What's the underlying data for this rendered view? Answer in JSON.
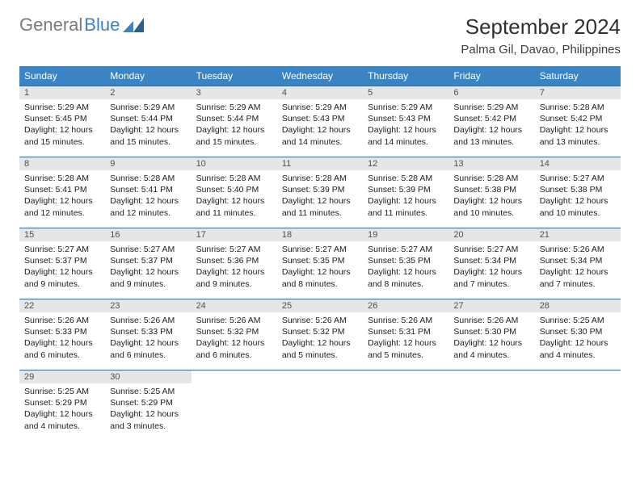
{
  "brand": {
    "part1": "General",
    "part2": "Blue"
  },
  "title": "September 2024",
  "location": "Palma Gil, Davao, Philippines",
  "colors": {
    "header_bg": "#3a84c4",
    "header_text": "#ffffff",
    "daynum_bg": "#e6e6e6",
    "border": "#3a6a94",
    "brand_gray": "#7a7a7a",
    "brand_blue": "#3a84c4"
  },
  "weekdays": [
    "Sunday",
    "Monday",
    "Tuesday",
    "Wednesday",
    "Thursday",
    "Friday",
    "Saturday"
  ],
  "days": [
    {
      "n": 1,
      "sr": "5:29 AM",
      "ss": "5:45 PM",
      "dl": "12 hours and 15 minutes."
    },
    {
      "n": 2,
      "sr": "5:29 AM",
      "ss": "5:44 PM",
      "dl": "12 hours and 15 minutes."
    },
    {
      "n": 3,
      "sr": "5:29 AM",
      "ss": "5:44 PM",
      "dl": "12 hours and 15 minutes."
    },
    {
      "n": 4,
      "sr": "5:29 AM",
      "ss": "5:43 PM",
      "dl": "12 hours and 14 minutes."
    },
    {
      "n": 5,
      "sr": "5:29 AM",
      "ss": "5:43 PM",
      "dl": "12 hours and 14 minutes."
    },
    {
      "n": 6,
      "sr": "5:29 AM",
      "ss": "5:42 PM",
      "dl": "12 hours and 13 minutes."
    },
    {
      "n": 7,
      "sr": "5:28 AM",
      "ss": "5:42 PM",
      "dl": "12 hours and 13 minutes."
    },
    {
      "n": 8,
      "sr": "5:28 AM",
      "ss": "5:41 PM",
      "dl": "12 hours and 12 minutes."
    },
    {
      "n": 9,
      "sr": "5:28 AM",
      "ss": "5:41 PM",
      "dl": "12 hours and 12 minutes."
    },
    {
      "n": 10,
      "sr": "5:28 AM",
      "ss": "5:40 PM",
      "dl": "12 hours and 11 minutes."
    },
    {
      "n": 11,
      "sr": "5:28 AM",
      "ss": "5:39 PM",
      "dl": "12 hours and 11 minutes."
    },
    {
      "n": 12,
      "sr": "5:28 AM",
      "ss": "5:39 PM",
      "dl": "12 hours and 11 minutes."
    },
    {
      "n": 13,
      "sr": "5:28 AM",
      "ss": "5:38 PM",
      "dl": "12 hours and 10 minutes."
    },
    {
      "n": 14,
      "sr": "5:27 AM",
      "ss": "5:38 PM",
      "dl": "12 hours and 10 minutes."
    },
    {
      "n": 15,
      "sr": "5:27 AM",
      "ss": "5:37 PM",
      "dl": "12 hours and 9 minutes."
    },
    {
      "n": 16,
      "sr": "5:27 AM",
      "ss": "5:37 PM",
      "dl": "12 hours and 9 minutes."
    },
    {
      "n": 17,
      "sr": "5:27 AM",
      "ss": "5:36 PM",
      "dl": "12 hours and 9 minutes."
    },
    {
      "n": 18,
      "sr": "5:27 AM",
      "ss": "5:35 PM",
      "dl": "12 hours and 8 minutes."
    },
    {
      "n": 19,
      "sr": "5:27 AM",
      "ss": "5:35 PM",
      "dl": "12 hours and 8 minutes."
    },
    {
      "n": 20,
      "sr": "5:27 AM",
      "ss": "5:34 PM",
      "dl": "12 hours and 7 minutes."
    },
    {
      "n": 21,
      "sr": "5:26 AM",
      "ss": "5:34 PM",
      "dl": "12 hours and 7 minutes."
    },
    {
      "n": 22,
      "sr": "5:26 AM",
      "ss": "5:33 PM",
      "dl": "12 hours and 6 minutes."
    },
    {
      "n": 23,
      "sr": "5:26 AM",
      "ss": "5:33 PM",
      "dl": "12 hours and 6 minutes."
    },
    {
      "n": 24,
      "sr": "5:26 AM",
      "ss": "5:32 PM",
      "dl": "12 hours and 6 minutes."
    },
    {
      "n": 25,
      "sr": "5:26 AM",
      "ss": "5:32 PM",
      "dl": "12 hours and 5 minutes."
    },
    {
      "n": 26,
      "sr": "5:26 AM",
      "ss": "5:31 PM",
      "dl": "12 hours and 5 minutes."
    },
    {
      "n": 27,
      "sr": "5:26 AM",
      "ss": "5:30 PM",
      "dl": "12 hours and 4 minutes."
    },
    {
      "n": 28,
      "sr": "5:25 AM",
      "ss": "5:30 PM",
      "dl": "12 hours and 4 minutes."
    },
    {
      "n": 29,
      "sr": "5:25 AM",
      "ss": "5:29 PM",
      "dl": "12 hours and 4 minutes."
    },
    {
      "n": 30,
      "sr": "5:25 AM",
      "ss": "5:29 PM",
      "dl": "12 hours and 3 minutes."
    }
  ],
  "labels": {
    "sunrise": "Sunrise:",
    "sunset": "Sunset:",
    "daylight": "Daylight:"
  }
}
